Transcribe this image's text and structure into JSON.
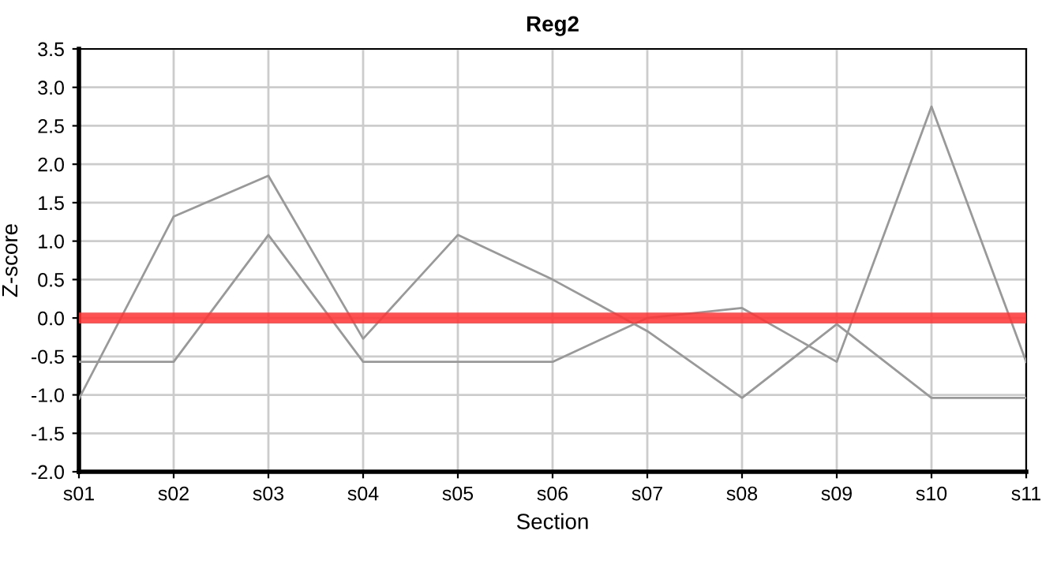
{
  "chart_data": {
    "type": "line",
    "title": "Reg2",
    "xlabel": "Section",
    "ylabel": "Z-score",
    "categories": [
      "s01",
      "s02",
      "s03",
      "s04",
      "s05",
      "s06",
      "s07",
      "s08",
      "s09",
      "s10",
      "s11"
    ],
    "series": [
      {
        "color": "#999999",
        "values": [
          -1.05,
          1.32,
          1.85,
          -0.27,
          1.08,
          0.5,
          -0.17,
          -1.04,
          -0.08,
          -1.04,
          -1.04
        ]
      },
      {
        "color": "#999999",
        "values": [
          -0.57,
          -0.57,
          1.08,
          -0.57,
          -0.57,
          -0.57,
          0.0,
          0.13,
          -0.57,
          2.75,
          -0.57
        ]
      }
    ],
    "ylim": [
      -2,
      3.5
    ],
    "yticks": [
      {
        "value": -2,
        "label": "-2.0"
      },
      {
        "value": -1.5,
        "label": "-1.5"
      },
      {
        "value": -1,
        "label": "-1.0"
      },
      {
        "value": -0.5,
        "label": "-0.5"
      },
      {
        "value": 0,
        "label": "0.0"
      },
      {
        "value": 0.5,
        "label": "0.5"
      },
      {
        "value": 1,
        "label": "1.0"
      },
      {
        "value": 1.5,
        "label": "1.5"
      },
      {
        "value": 2,
        "label": "2.0"
      },
      {
        "value": 2.5,
        "label": "2.5"
      },
      {
        "value": 3,
        "label": "3.0"
      },
      {
        "value": 3.5,
        "label": "3.5"
      }
    ],
    "ref_lines": [
      {
        "axis": "y",
        "value": 0,
        "color": "#ff3333"
      }
    ],
    "grid": true,
    "marker": "none",
    "line_style": "solid"
  }
}
